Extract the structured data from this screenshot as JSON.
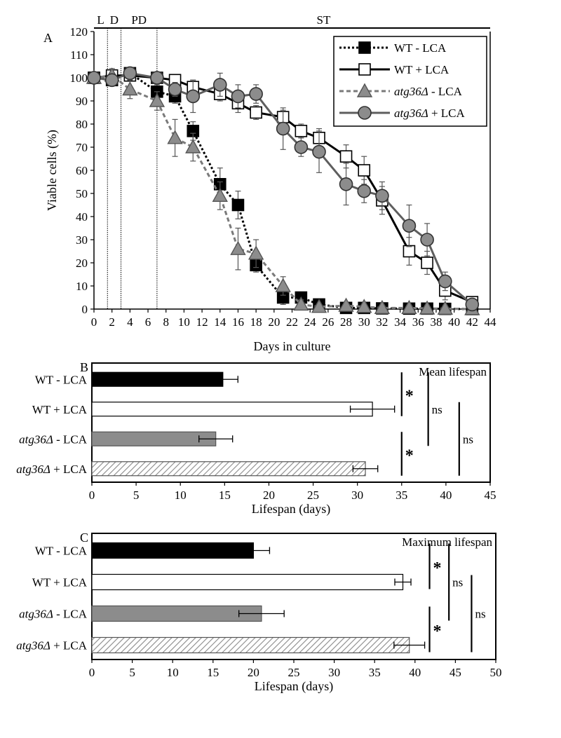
{
  "chart_data": [
    {
      "panel": "A",
      "type": "line",
      "xlabel": "Days in culture",
      "ylabel": "Viable cells (%)",
      "xlim": [
        0,
        44
      ],
      "ylim": [
        0,
        120
      ],
      "xticks": [
        0,
        2,
        4,
        6,
        8,
        10,
        12,
        14,
        16,
        18,
        20,
        22,
        24,
        26,
        28,
        30,
        32,
        34,
        36,
        38,
        40,
        42,
        44
      ],
      "yticks": [
        0,
        10,
        20,
        30,
        40,
        50,
        60,
        70,
        80,
        90,
        100,
        110,
        120
      ],
      "phases": [
        {
          "label": "L",
          "start": 0,
          "end": 1.5
        },
        {
          "label": "D",
          "start": 1.5,
          "end": 3
        },
        {
          "label": "PD",
          "start": 3,
          "end": 7
        },
        {
          "label": "ST",
          "start": 7,
          "end": 44
        }
      ],
      "series": [
        {
          "name": "WT - LCA",
          "name_prefix": "WT",
          "name_suffix": " - LCA",
          "italic": false,
          "marker": "square",
          "fill": "#000000",
          "line_color": "#000000",
          "dash": "3,3",
          "x": [
            0,
            2,
            4,
            7,
            9,
            11,
            14,
            16,
            18,
            21,
            23,
            25,
            28,
            30,
            32,
            35,
            37,
            39,
            42
          ],
          "y": [
            100,
            99,
            102,
            94,
            92,
            77,
            54,
            45,
            19,
            5,
            5,
            2,
            0.5,
            0.5,
            0.3,
            0.2,
            0.2,
            0.1,
            0
          ],
          "err": [
            0,
            2,
            2,
            3,
            3,
            4,
            7,
            6,
            3,
            3,
            2,
            1,
            1,
            0.5,
            0.5,
            0.3,
            0.3,
            0.2,
            0
          ]
        },
        {
          "name": "WT + LCA",
          "name_prefix": "WT",
          "name_suffix": " + LCA",
          "italic": false,
          "marker": "square",
          "fill": "#ffffff",
          "line_color": "#000000",
          "dash": "",
          "x": [
            0,
            2,
            4,
            7,
            9,
            11,
            14,
            16,
            18,
            21,
            23,
            25,
            28,
            30,
            32,
            35,
            37,
            39,
            42
          ],
          "y": [
            100,
            101,
            101,
            100,
            99,
            96,
            93,
            89,
            85,
            83,
            77,
            74,
            66,
            60,
            47,
            25,
            20,
            8,
            3
          ],
          "err": [
            0,
            2,
            2,
            2,
            2,
            3,
            3,
            4,
            3,
            3,
            3,
            4,
            5,
            6,
            6,
            6,
            5,
            4,
            2
          ]
        },
        {
          "name": "atg36Δ - LCA",
          "name_prefix": "atg36Δ",
          "name_suffix": " - LCA",
          "italic": true,
          "marker": "triangle",
          "fill": "#8c8c8c",
          "line_color": "#7a7a7a",
          "dash": "6,4",
          "x": [
            0,
            2,
            4,
            7,
            9,
            11,
            14,
            16,
            18,
            21,
            23,
            25,
            28,
            30,
            32,
            35,
            37,
            39,
            42
          ],
          "y": [
            100,
            101,
            95,
            90,
            74,
            70,
            49,
            26,
            24,
            10,
            2,
            1,
            1.5,
            1,
            0.5,
            0.5,
            0.3,
            0.2,
            0
          ],
          "err": [
            0,
            3,
            4,
            4,
            8,
            6,
            6,
            9,
            6,
            4,
            2,
            1,
            1,
            0.5,
            0.5,
            0.5,
            0.3,
            0.3,
            0
          ]
        },
        {
          "name": "atg36Δ + LCA",
          "name_prefix": "atg36Δ",
          "name_suffix": " + LCA",
          "italic": true,
          "marker": "circle",
          "fill": "#8c8c8c",
          "line_color": "#5e5e5e",
          "dash": "",
          "x": [
            0,
            2,
            4,
            7,
            9,
            11,
            14,
            16,
            18,
            21,
            23,
            25,
            28,
            30,
            32,
            35,
            37,
            39,
            42
          ],
          "y": [
            100,
            99,
            102,
            100,
            95,
            92,
            97,
            92,
            93,
            78,
            70,
            68,
            54,
            51,
            49,
            36,
            30,
            12,
            2
          ],
          "err": [
            0,
            2,
            2,
            2,
            3,
            7,
            5,
            5,
            4,
            9,
            4,
            9,
            9,
            5,
            6,
            9,
            7,
            4,
            2
          ]
        }
      ]
    },
    {
      "panel": "B",
      "type": "bar",
      "orientation": "horizontal",
      "title": "Mean lifespan",
      "xlabel": "Lifespan (days)",
      "xlim": [
        0,
        45
      ],
      "xticks": [
        0,
        5,
        10,
        15,
        20,
        25,
        30,
        35,
        40,
        45
      ],
      "bars": [
        {
          "prefix": "WT",
          "suffix": " - LCA",
          "italic": false,
          "value": 14.8,
          "err": 1.7,
          "style": "black"
        },
        {
          "prefix": "WT",
          "suffix": " + LCA",
          "italic": false,
          "value": 31.7,
          "err": 2.5,
          "style": "white"
        },
        {
          "prefix": "atg36Δ",
          "suffix": " - LCA",
          "italic": true,
          "value": 14.0,
          "err": 1.9,
          "style": "gray"
        },
        {
          "prefix": "atg36Δ",
          "suffix": " + LCA",
          "italic": true,
          "value": 30.9,
          "err": 1.4,
          "style": "hatched"
        }
      ],
      "significance": [
        {
          "from": 0,
          "to": 1,
          "label": "*",
          "x": 35.0
        },
        {
          "from": 0,
          "to": 2,
          "label": "ns",
          "x": 38.0
        },
        {
          "from": 1,
          "to": 3,
          "label": "ns",
          "x": 41.5
        },
        {
          "from": 2,
          "to": 3,
          "label": "*",
          "x": 35.0
        }
      ]
    },
    {
      "panel": "C",
      "type": "bar",
      "orientation": "horizontal",
      "title": "Maximum lifespan",
      "xlabel": "Lifespan (days)",
      "xlim": [
        0,
        50
      ],
      "xticks": [
        0,
        5,
        10,
        15,
        20,
        25,
        30,
        35,
        40,
        45,
        50
      ],
      "bars": [
        {
          "prefix": "WT",
          "suffix": " - LCA",
          "italic": false,
          "value": 20.0,
          "err": 2.0,
          "style": "black"
        },
        {
          "prefix": "WT",
          "suffix": " + LCA",
          "italic": false,
          "value": 38.5,
          "err": 1.0,
          "style": "white"
        },
        {
          "prefix": "atg36Δ",
          "suffix": " - LCA",
          "italic": true,
          "value": 21.0,
          "err": 2.8,
          "style": "gray"
        },
        {
          "prefix": "atg36Δ",
          "suffix": " + LCA",
          "italic": true,
          "value": 39.3,
          "err": 1.9,
          "style": "hatched"
        }
      ],
      "significance": [
        {
          "from": 0,
          "to": 1,
          "label": "*",
          "x": 41.8
        },
        {
          "from": 0,
          "to": 2,
          "label": "ns",
          "x": 44.2
        },
        {
          "from": 1,
          "to": 3,
          "label": "ns",
          "x": 47.0
        },
        {
          "from": 2,
          "to": 3,
          "label": "*",
          "x": 41.8
        }
      ]
    }
  ]
}
